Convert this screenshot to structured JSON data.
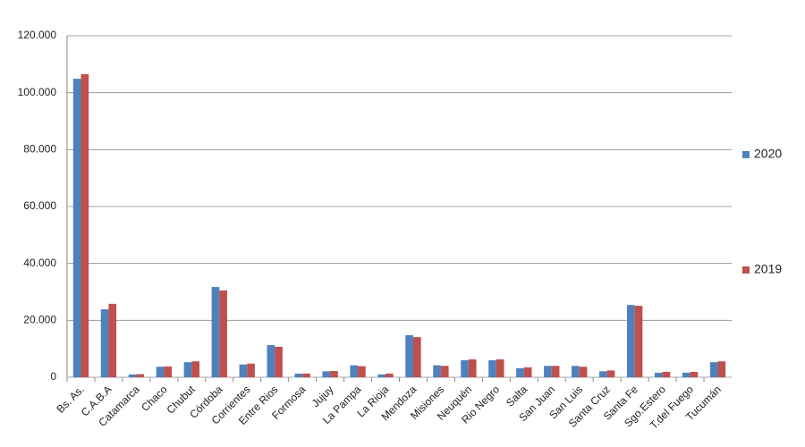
{
  "chart_data": {
    "type": "bar",
    "categories": [
      "Bs. As.",
      "C.A.B.A",
      "Catamarca",
      "Chaco",
      "Chubut",
      "Córdoba",
      "Corrientes",
      "Entre Rios",
      "Formosa",
      "Jujuy",
      "La Pampa",
      "La Rioja",
      "Mendoza",
      "Misiones",
      "Neuquén",
      "Rio Negro",
      "Salta",
      "San Juan",
      "San Luis",
      "Santa Cruz",
      "Santa Fe",
      "Sgo.Estero",
      "T.del Fuego",
      "Tucumán"
    ],
    "series": [
      {
        "name": "2020",
        "color": "#4f81bd",
        "values": [
          104900,
          23900,
          1000,
          3700,
          5300,
          31700,
          4500,
          11300,
          1300,
          2100,
          4200,
          1000,
          14800,
          4200,
          6000,
          6000,
          3200,
          4000,
          4000,
          2100,
          25400,
          1600,
          1600,
          5300
        ]
      },
      {
        "name": "2019",
        "color": "#c0504d",
        "values": [
          106500,
          25800,
          1100,
          3800,
          5600,
          30500,
          4800,
          10700,
          1300,
          2200,
          3900,
          1300,
          14100,
          4000,
          6300,
          6300,
          3500,
          4000,
          3700,
          2400,
          25100,
          1900,
          1900,
          5600
        ]
      }
    ],
    "ylim": [
      0,
      120000
    ],
    "yticks": [
      0,
      {
        "value": 20000,
        "label": "20.000"
      },
      {
        "value": 40000,
        "label": "40.000"
      },
      {
        "value": 60000,
        "label": "60.000"
      },
      {
        "value": 80000,
        "label": "80.000"
      },
      {
        "value": 100000,
        "label": "100.000"
      },
      {
        "value": 120000,
        "label": "120.000"
      }
    ],
    "grid": true,
    "legend": "right"
  }
}
